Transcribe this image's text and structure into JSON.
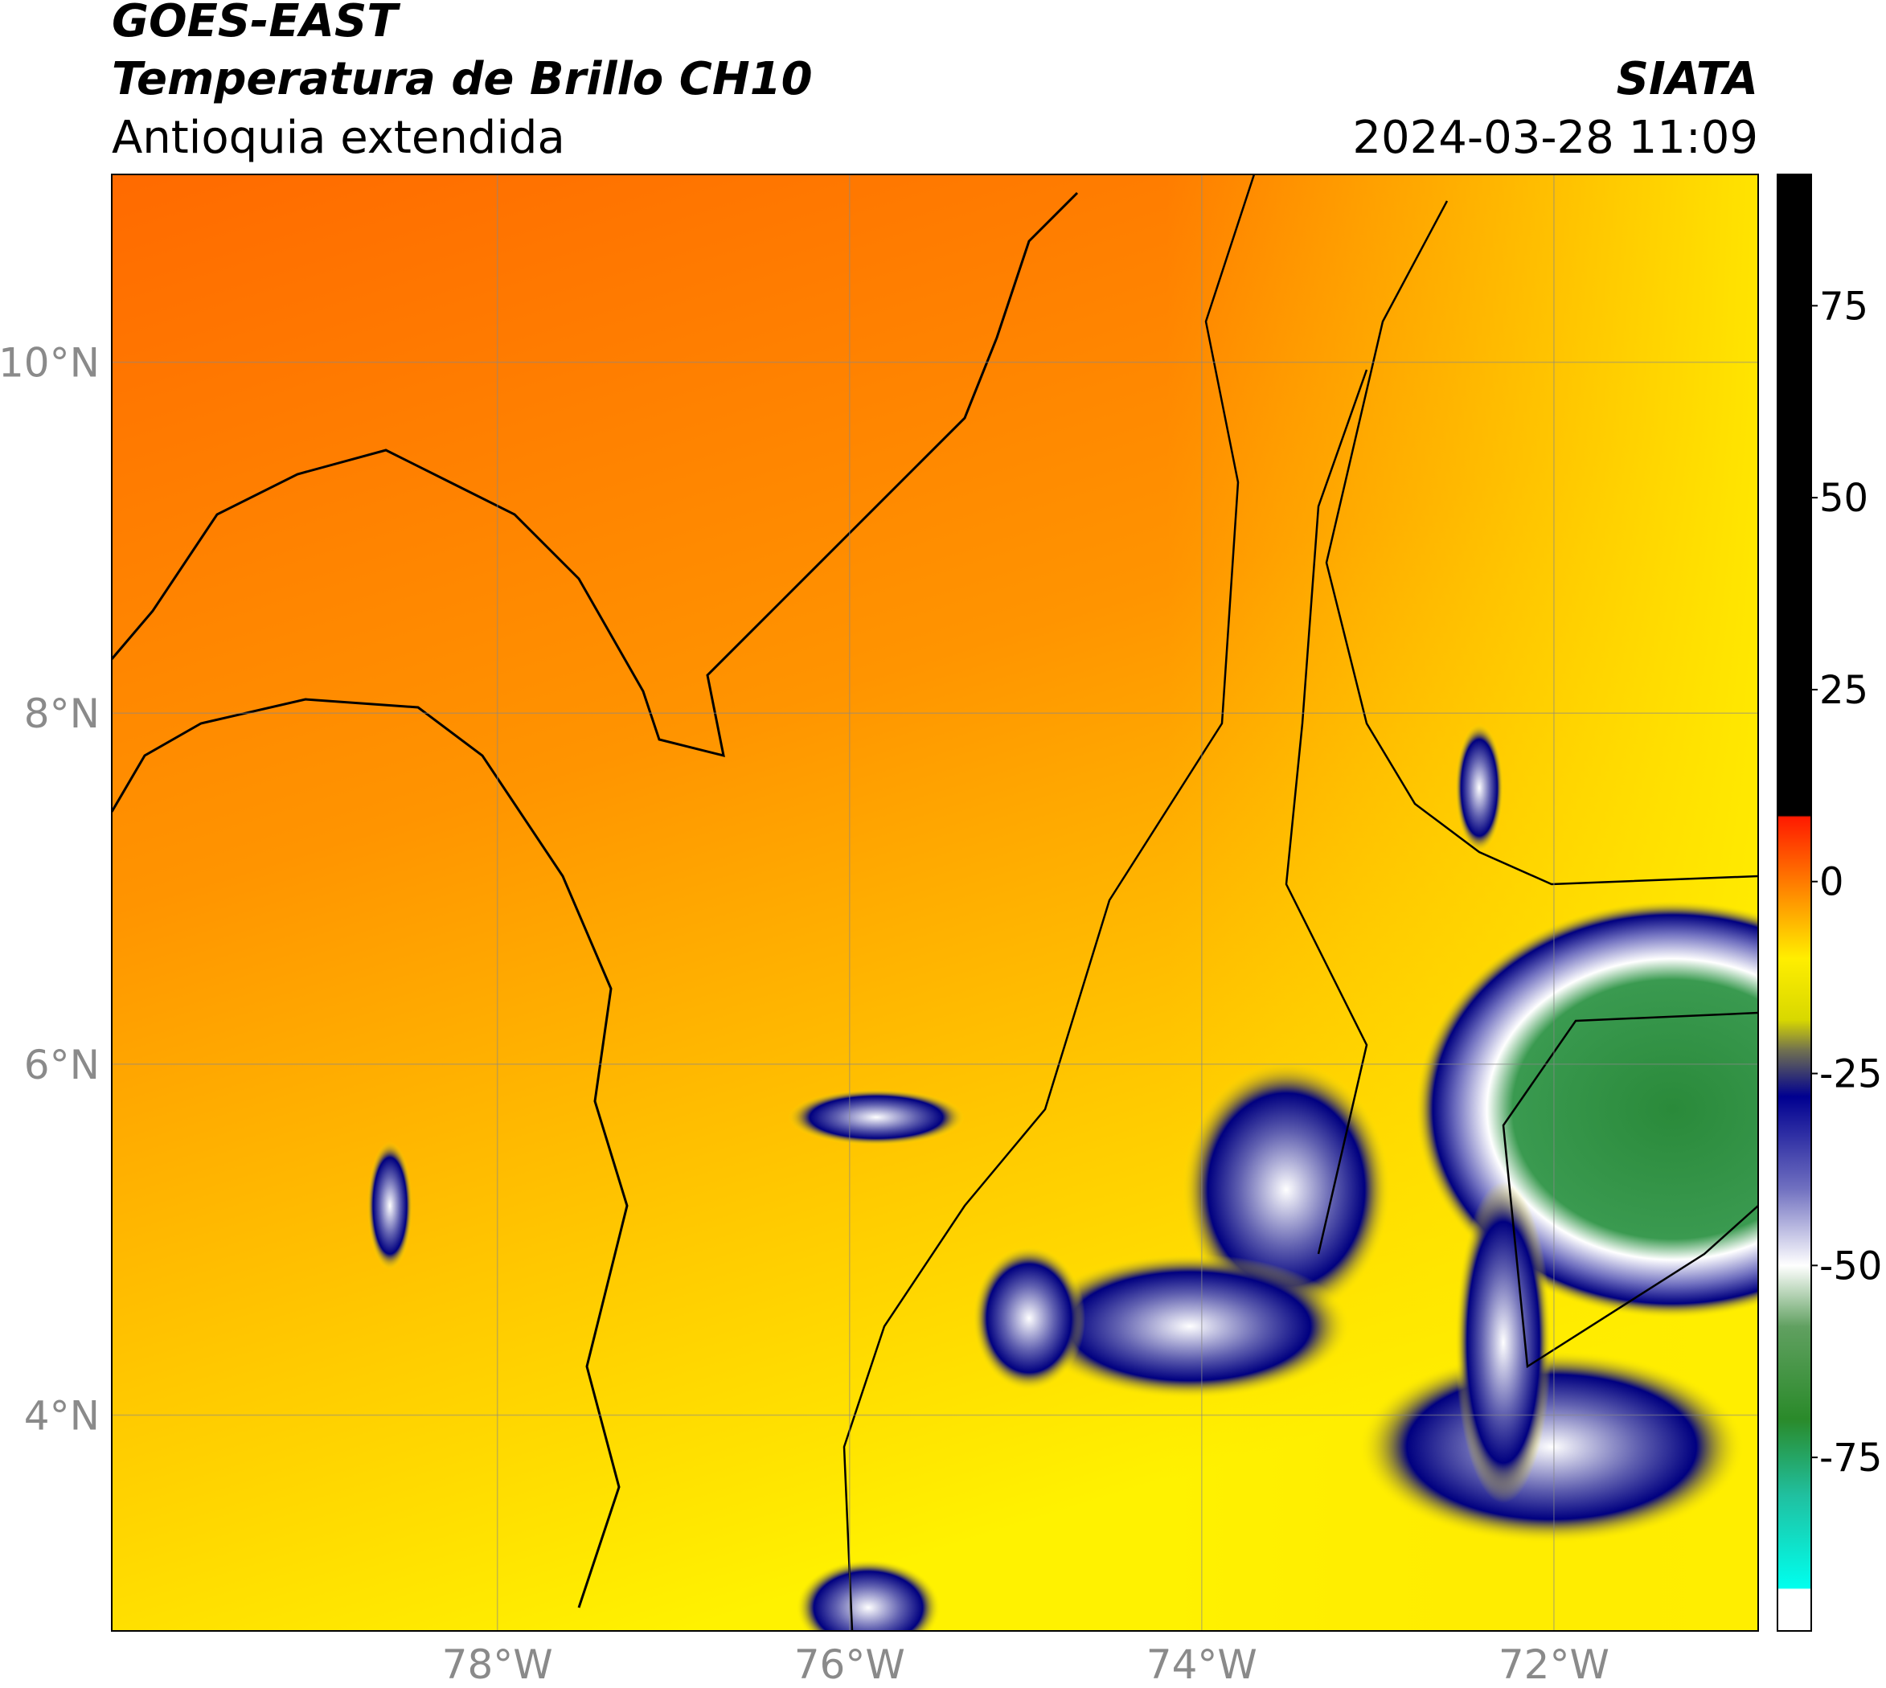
{
  "header": {
    "title": "GOES-EAST",
    "subtitle": "Temperatura de Brillo CH10",
    "region": "Antioquia extendida",
    "source": "SIATA",
    "datetime": "2024-03-28 11:09"
  },
  "map": {
    "xlim": [
      -80.19,
      -70.84
    ],
    "ylim": [
      2.77,
      11.07
    ],
    "xticks": [
      {
        "value": -78,
        "label": "78°W"
      },
      {
        "value": -76,
        "label": "76°W"
      },
      {
        "value": -74,
        "label": "74°W"
      },
      {
        "value": -72,
        "label": "72°W"
      }
    ],
    "yticks": [
      {
        "value": 10,
        "label": "10°N"
      },
      {
        "value": 8,
        "label": "8°N"
      },
      {
        "value": 6,
        "label": "6°N"
      },
      {
        "value": 4,
        "label": "4°N"
      }
    ],
    "grid": true
  },
  "colorbar": {
    "lim": [
      -97.6,
      92.1
    ],
    "ticks": [
      75,
      50,
      25,
      0,
      -25,
      -50,
      -75
    ],
    "stops": [
      {
        "value": 92.1,
        "color": "#000000"
      },
      {
        "value": 8.6,
        "color": "#000000"
      },
      {
        "value": 8.4,
        "color": "#ff1a00"
      },
      {
        "value": 0,
        "color": "#ff7a00"
      },
      {
        "value": -10,
        "color": "#ffee00"
      },
      {
        "value": -18,
        "color": "#d8d800"
      },
      {
        "value": -22,
        "color": "#707050"
      },
      {
        "value": -28,
        "color": "#000090"
      },
      {
        "value": -40,
        "color": "#7070c0"
      },
      {
        "value": -50,
        "color": "#ffffff"
      },
      {
        "value": -58,
        "color": "#60a060"
      },
      {
        "value": -70,
        "color": "#2a8a2a"
      },
      {
        "value": -80,
        "color": "#20c0a0"
      },
      {
        "value": -92,
        "color": "#00ffee"
      },
      {
        "value": -92.2,
        "color": "#ffffff"
      },
      {
        "value": -97.6,
        "color": "#ffffff"
      }
    ]
  }
}
